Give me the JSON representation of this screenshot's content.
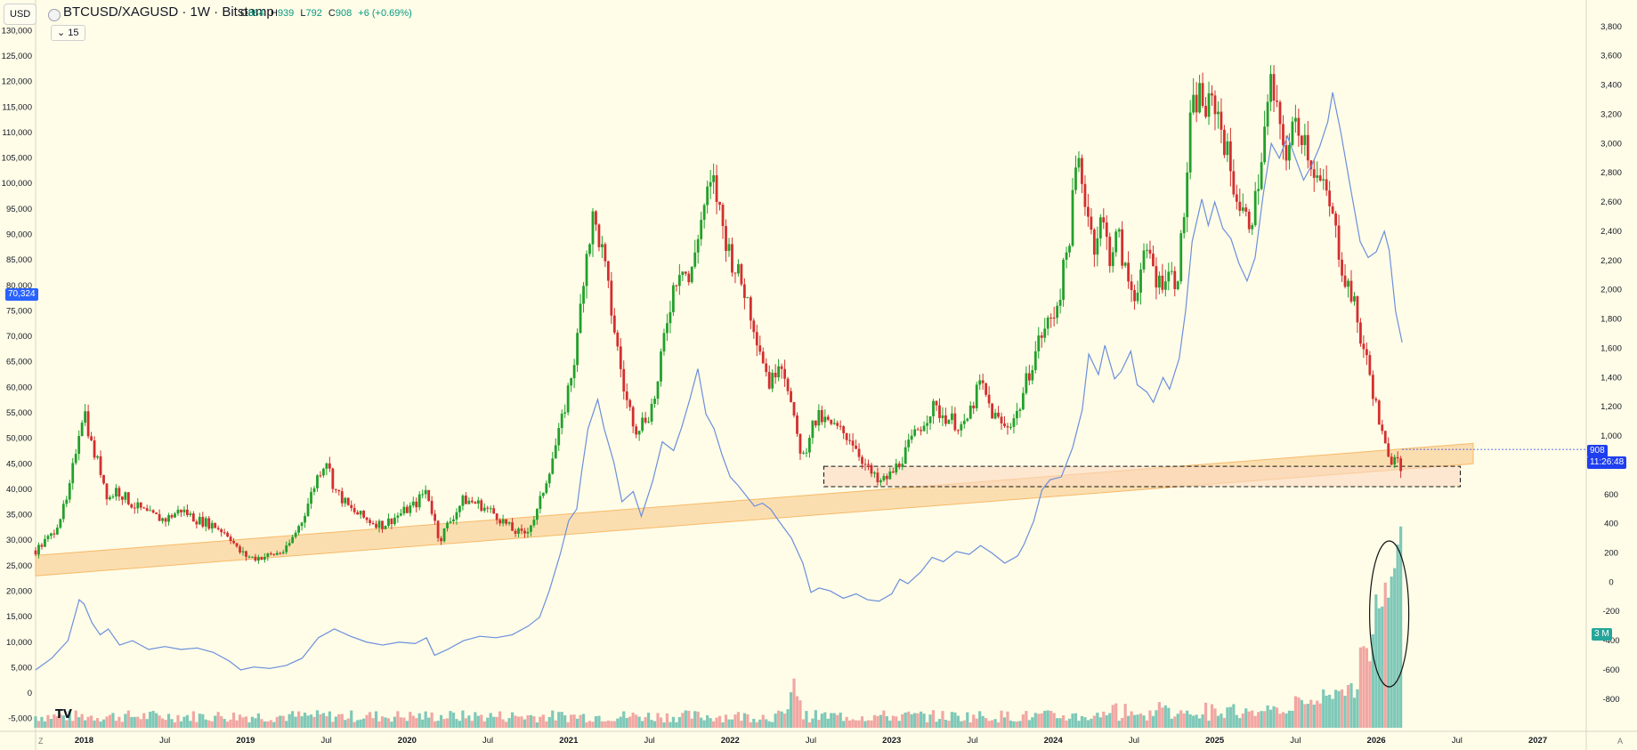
{
  "header": {
    "currency_button": "USD",
    "symbol_title": "BTCUSD/XAGUSD · 1W · Bitstamp",
    "ohlc": {
      "o_label": "O",
      "o": "884",
      "h_label": "H",
      "h": "939",
      "l_label": "L",
      "l": "792",
      "c_label": "C",
      "c": "908",
      "change": "+6 (+0.69%)"
    },
    "indicator_toggle": "15"
  },
  "badges": {
    "left_price": "70,324",
    "right_price": "908",
    "right_countdown": "11:26:48",
    "volume": "3 M"
  },
  "footer": {
    "left_corner": "Z",
    "right_corner": "A"
  },
  "logo": "TV",
  "colors": {
    "up": "#22a02c",
    "down": "#d32f2f",
    "line": "#6b8fdc",
    "band": "#f7b96a",
    "zone": "#fbd9c0",
    "vol_up": "#7ec8b8",
    "vol_down": "#f1a7a3",
    "background": "#fffde8"
  },
  "chart_data": {
    "type": "candlestick",
    "title": "BTCUSD/XAGUSD · 1W · Bitstamp",
    "left_axis": {
      "ylim": [
        -7500,
        132500
      ],
      "ticks": [
        -5000,
        0,
        5000,
        10000,
        15000,
        20000,
        25000,
        30000,
        35000,
        40000,
        45000,
        50000,
        55000,
        60000,
        65000,
        70000,
        75000,
        80000,
        85000,
        90000,
        95000,
        100000,
        105000,
        110000,
        115000,
        120000,
        125000,
        130000
      ]
    },
    "right_axis": {
      "ylim": [
        -1020,
        3860
      ],
      "ticks": [
        -800,
        -600,
        -400,
        -200,
        0,
        200,
        400,
        600,
        800,
        1000,
        1200,
        1400,
        1600,
        1800,
        2000,
        2200,
        2400,
        2600,
        2800,
        3000,
        3200,
        3400,
        3600,
        3800
      ]
    },
    "x_ticks": [
      "2018",
      "Jul",
      "2019",
      "Jul",
      "2020",
      "Jul",
      "2021",
      "Jul",
      "2022",
      "Jul",
      "2023",
      "Jul",
      "2024",
      "Jul",
      "2025",
      "Jul",
      "2026",
      "Jul",
      "2027"
    ],
    "x_tick_dates": [
      2018.0,
      2018.5,
      2019.0,
      2019.5,
      2020.0,
      2020.5,
      2021.0,
      2021.5,
      2022.0,
      2022.5,
      2023.0,
      2023.5,
      2024.0,
      2024.5,
      2025.0,
      2025.5,
      2026.0,
      2026.5,
      2027.0
    ],
    "xlim": [
      2017.7,
      2027.3
    ],
    "ratio_series": {
      "name": "BTCUSD/XAGUSD",
      "points": [
        [
          2017.7,
          28000
        ],
        [
          2017.8,
          31000
        ],
        [
          2017.9,
          38000
        ],
        [
          2017.97,
          52000
        ],
        [
          2018.0,
          56000
        ],
        [
          2018.05,
          48000
        ],
        [
          2018.1,
          44000
        ],
        [
          2018.15,
          38000
        ],
        [
          2018.2,
          40000
        ],
        [
          2018.3,
          37000
        ],
        [
          2018.4,
          35000
        ],
        [
          2018.5,
          34000
        ],
        [
          2018.6,
          36000
        ],
        [
          2018.7,
          34000
        ],
        [
          2018.8,
          33000
        ],
        [
          2018.9,
          31000
        ],
        [
          2018.95,
          28000
        ],
        [
          2019.0,
          27000
        ],
        [
          2019.05,
          26500
        ],
        [
          2019.15,
          27000
        ],
        [
          2019.25,
          28000
        ],
        [
          2019.35,
          34000
        ],
        [
          2019.45,
          43000
        ],
        [
          2019.5,
          46000
        ],
        [
          2019.55,
          40000
        ],
        [
          2019.65,
          36000
        ],
        [
          2019.75,
          34000
        ],
        [
          2019.85,
          33000
        ],
        [
          2019.95,
          35000
        ],
        [
          2020.05,
          37000
        ],
        [
          2020.12,
          40000
        ],
        [
          2020.2,
          30000
        ],
        [
          2020.25,
          33000
        ],
        [
          2020.35,
          38000
        ],
        [
          2020.45,
          37000
        ],
        [
          2020.55,
          35000
        ],
        [
          2020.65,
          32000
        ],
        [
          2020.72,
          31000
        ],
        [
          2020.8,
          35000
        ],
        [
          2020.88,
          44000
        ],
        [
          2020.95,
          52000
        ],
        [
          2021.0,
          60000
        ],
        [
          2021.05,
          68000
        ],
        [
          2021.1,
          85000
        ],
        [
          2021.15,
          93000
        ],
        [
          2021.2,
          88000
        ],
        [
          2021.25,
          78000
        ],
        [
          2021.3,
          68000
        ],
        [
          2021.35,
          58000
        ],
        [
          2021.42,
          52000
        ],
        [
          2021.5,
          55000
        ],
        [
          2021.55,
          60000
        ],
        [
          2021.6,
          72000
        ],
        [
          2021.65,
          80000
        ],
        [
          2021.7,
          85000
        ],
        [
          2021.75,
          80000
        ],
        [
          2021.8,
          90000
        ],
        [
          2021.85,
          97000
        ],
        [
          2021.9,
          100000
        ],
        [
          2021.95,
          92000
        ],
        [
          2022.0,
          86000
        ],
        [
          2022.05,
          82000
        ],
        [
          2022.1,
          78000
        ],
        [
          2022.15,
          72000
        ],
        [
          2022.2,
          66000
        ],
        [
          2022.25,
          60000
        ],
        [
          2022.3,
          66000
        ],
        [
          2022.35,
          62000
        ],
        [
          2022.4,
          52000
        ],
        [
          2022.45,
          46000
        ],
        [
          2022.5,
          52000
        ],
        [
          2022.55,
          54000
        ],
        [
          2022.65,
          52000
        ],
        [
          2022.75,
          50000
        ],
        [
          2022.85,
          44000
        ],
        [
          2022.92,
          41000
        ],
        [
          2023.0,
          43000
        ],
        [
          2023.08,
          47000
        ],
        [
          2023.15,
          51000
        ],
        [
          2023.25,
          56000
        ],
        [
          2023.35,
          54000
        ],
        [
          2023.45,
          52000
        ],
        [
          2023.55,
          61000
        ],
        [
          2023.62,
          55000
        ],
        [
          2023.7,
          52000
        ],
        [
          2023.78,
          55000
        ],
        [
          2023.85,
          63000
        ],
        [
          2023.92,
          70000
        ],
        [
          2024.0,
          74000
        ],
        [
          2024.05,
          80000
        ],
        [
          2024.1,
          90000
        ],
        [
          2024.15,
          105000
        ],
        [
          2024.2,
          97000
        ],
        [
          2024.25,
          88000
        ],
        [
          2024.3,
          93000
        ],
        [
          2024.35,
          86000
        ],
        [
          2024.4,
          90000
        ],
        [
          2024.45,
          82000
        ],
        [
          2024.5,
          78000
        ],
        [
          2024.55,
          84000
        ],
        [
          2024.6,
          86000
        ],
        [
          2024.65,
          80000
        ],
        [
          2024.7,
          83000
        ],
        [
          2024.75,
          81000
        ],
        [
          2024.78,
          84000
        ],
        [
          2024.82,
          98000
        ],
        [
          2024.85,
          112000
        ],
        [
          2024.9,
          118000
        ],
        [
          2024.95,
          114000
        ],
        [
          2025.0,
          116000
        ],
        [
          2025.05,
          110000
        ],
        [
          2025.1,
          102000
        ],
        [
          2025.15,
          96000
        ],
        [
          2025.2,
          92000
        ],
        [
          2025.25,
          96000
        ],
        [
          2025.3,
          108000
        ],
        [
          2025.35,
          120000
        ],
        [
          2025.4,
          110000
        ],
        [
          2025.45,
          106000
        ],
        [
          2025.5,
          112000
        ],
        [
          2025.55,
          110000
        ],
        [
          2025.6,
          104000
        ],
        [
          2025.65,
          100000
        ],
        [
          2025.7,
          97000
        ],
        [
          2025.75,
          90000
        ],
        [
          2025.8,
          82000
        ],
        [
          2025.85,
          78000
        ],
        [
          2025.9,
          70000
        ],
        [
          2025.95,
          64000
        ],
        [
          2026.0,
          56000
        ],
        [
          2026.04,
          50000
        ],
        [
          2026.08,
          45000
        ],
        [
          2026.12,
          48000
        ],
        [
          2026.16,
          44000
        ]
      ]
    },
    "comparison_line": {
      "name": "",
      "axis": "right",
      "points": [
        [
          2017.7,
          -600
        ],
        [
          2017.8,
          -520
        ],
        [
          2017.9,
          -400
        ],
        [
          2017.97,
          -120
        ],
        [
          2018.0,
          -150
        ],
        [
          2018.05,
          -280
        ],
        [
          2018.1,
          -360
        ],
        [
          2018.15,
          -320
        ],
        [
          2018.22,
          -430
        ],
        [
          2018.3,
          -400
        ],
        [
          2018.4,
          -460
        ],
        [
          2018.5,
          -440
        ],
        [
          2018.6,
          -460
        ],
        [
          2018.7,
          -450
        ],
        [
          2018.8,
          -480
        ],
        [
          2018.9,
          -540
        ],
        [
          2018.97,
          -600
        ],
        [
          2019.05,
          -580
        ],
        [
          2019.15,
          -590
        ],
        [
          2019.25,
          -570
        ],
        [
          2019.35,
          -520
        ],
        [
          2019.45,
          -380
        ],
        [
          2019.55,
          -320
        ],
        [
          2019.65,
          -370
        ],
        [
          2019.75,
          -410
        ],
        [
          2019.85,
          -430
        ],
        [
          2019.95,
          -410
        ],
        [
          2020.05,
          -420
        ],
        [
          2020.12,
          -380
        ],
        [
          2020.17,
          -500
        ],
        [
          2020.25,
          -460
        ],
        [
          2020.35,
          -400
        ],
        [
          2020.45,
          -370
        ],
        [
          2020.55,
          -380
        ],
        [
          2020.65,
          -360
        ],
        [
          2020.75,
          -300
        ],
        [
          2020.82,
          -240
        ],
        [
          2020.88,
          -60
        ],
        [
          2020.95,
          200
        ],
        [
          2021.0,
          420
        ],
        [
          2021.05,
          500
        ],
        [
          2021.08,
          750
        ],
        [
          2021.12,
          1050
        ],
        [
          2021.18,
          1250
        ],
        [
          2021.22,
          1050
        ],
        [
          2021.28,
          820
        ],
        [
          2021.33,
          550
        ],
        [
          2021.4,
          620
        ],
        [
          2021.45,
          450
        ],
        [
          2021.52,
          690
        ],
        [
          2021.58,
          960
        ],
        [
          2021.65,
          900
        ],
        [
          2021.7,
          1060
        ],
        [
          2021.75,
          1250
        ],
        [
          2021.8,
          1460
        ],
        [
          2021.85,
          1150
        ],
        [
          2021.9,
          1050
        ],
        [
          2021.95,
          870
        ],
        [
          2022.0,
          720
        ],
        [
          2022.05,
          660
        ],
        [
          2022.1,
          590
        ],
        [
          2022.15,
          520
        ],
        [
          2022.2,
          540
        ],
        [
          2022.25,
          500
        ],
        [
          2022.3,
          420
        ],
        [
          2022.38,
          300
        ],
        [
          2022.45,
          130
        ],
        [
          2022.5,
          -70
        ],
        [
          2022.55,
          -40
        ],
        [
          2022.62,
          -60
        ],
        [
          2022.7,
          -110
        ],
        [
          2022.78,
          -80
        ],
        [
          2022.85,
          -120
        ],
        [
          2022.92,
          -130
        ],
        [
          2023.0,
          -80
        ],
        [
          2023.05,
          20
        ],
        [
          2023.1,
          -10
        ],
        [
          2023.18,
          70
        ],
        [
          2023.25,
          170
        ],
        [
          2023.32,
          140
        ],
        [
          2023.4,
          210
        ],
        [
          2023.48,
          190
        ],
        [
          2023.55,
          250
        ],
        [
          2023.62,
          200
        ],
        [
          2023.7,
          130
        ],
        [
          2023.78,
          180
        ],
        [
          2023.82,
          260
        ],
        [
          2023.88,
          420
        ],
        [
          2023.93,
          630
        ],
        [
          2023.98,
          700
        ],
        [
          2024.05,
          720
        ],
        [
          2024.12,
          920
        ],
        [
          2024.18,
          1180
        ],
        [
          2024.22,
          1560
        ],
        [
          2024.28,
          1420
        ],
        [
          2024.32,
          1620
        ],
        [
          2024.38,
          1390
        ],
        [
          2024.42,
          1440
        ],
        [
          2024.48,
          1580
        ],
        [
          2024.52,
          1350
        ],
        [
          2024.58,
          1300
        ],
        [
          2024.62,
          1230
        ],
        [
          2024.68,
          1400
        ],
        [
          2024.72,
          1320
        ],
        [
          2024.78,
          1530
        ],
        [
          2024.82,
          1860
        ],
        [
          2024.86,
          2330
        ],
        [
          2024.92,
          2620
        ],
        [
          2024.96,
          2440
        ],
        [
          2025.0,
          2600
        ],
        [
          2025.05,
          2420
        ],
        [
          2025.1,
          2350
        ],
        [
          2025.15,
          2180
        ],
        [
          2025.2,
          2060
        ],
        [
          2025.25,
          2220
        ],
        [
          2025.3,
          2650
        ],
        [
          2025.35,
          3000
        ],
        [
          2025.4,
          2900
        ],
        [
          2025.45,
          3050
        ],
        [
          2025.5,
          2900
        ],
        [
          2025.55,
          2750
        ],
        [
          2025.6,
          2850
        ],
        [
          2025.65,
          2980
        ],
        [
          2025.7,
          3150
        ],
        [
          2025.73,
          3350
        ],
        [
          2025.78,
          3080
        ],
        [
          2025.84,
          2700
        ],
        [
          2025.9,
          2330
        ],
        [
          2025.95,
          2220
        ],
        [
          2026.0,
          2260
        ],
        [
          2026.05,
          2400
        ],
        [
          2026.08,
          2270
        ],
        [
          2026.12,
          1850
        ],
        [
          2026.16,
          1640
        ]
      ]
    },
    "support_band": {
      "start": [
        2017.7,
        25000
      ],
      "end": [
        2026.6,
        47000
      ],
      "thickness": 4000
    },
    "zone_box": {
      "x0": 2022.58,
      "x1": 2026.52,
      "y0": 40500,
      "y1": 44500
    },
    "volume": {
      "label": "3 M"
    }
  }
}
